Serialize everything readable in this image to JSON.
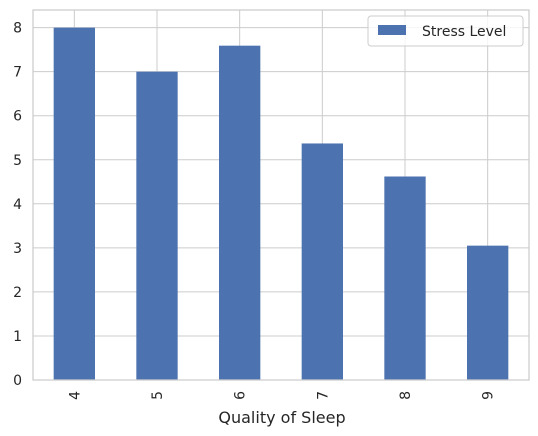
{
  "chart_data": {
    "type": "bar",
    "categories": [
      "4",
      "5",
      "6",
      "7",
      "8",
      "9"
    ],
    "series": [
      {
        "name": "Stress Level",
        "values": [
          8.0,
          7.0,
          7.59,
          5.37,
          4.62,
          3.05
        ]
      }
    ],
    "xlabel": "Quality of Sleep",
    "ylabel": "",
    "ylim": [
      0,
      8.4
    ],
    "yticks": [
      0,
      1,
      2,
      3,
      4,
      5,
      6,
      7,
      8
    ],
    "grid": true,
    "legend_position": "top-right",
    "bar_color": "#4c72b0",
    "grid_color": "#cccccc",
    "axes_color": "#cccccc"
  }
}
